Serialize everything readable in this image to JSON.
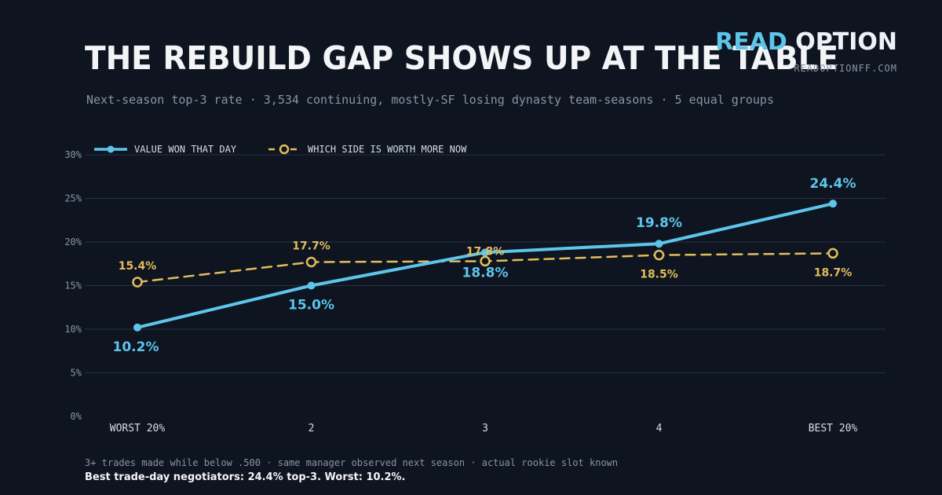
{
  "header": {
    "title": "THE REBUILD GAP SHOWS UP AT THE TABLE",
    "subtitle": "Next-season top-3 rate · 3,534 continuing, mostly-SF losing dynasty team-seasons · 5 equal groups"
  },
  "brand": {
    "name_part1": "READ",
    "name_part2": "OPTION",
    "url": "READOPTIONFF.COM"
  },
  "colors": {
    "background": "#0e1420",
    "series_a": "#5ec5ea",
    "series_b": "#e2bd5c",
    "grid": "#263142"
  },
  "chart_data": {
    "type": "line",
    "categories": [
      "WORST 20%",
      "2",
      "3",
      "4",
      "BEST 20%"
    ],
    "y_ticks": [
      "0%",
      "5%",
      "10%",
      "15%",
      "20%",
      "25%",
      "30%"
    ],
    "ylim": [
      0,
      30
    ],
    "grid": true,
    "legend_position": "top-left",
    "series": [
      {
        "name": "VALUE WON THAT DAY",
        "values": [
          10.2,
          15.0,
          18.8,
          19.8,
          24.4
        ],
        "labels": [
          "10.2%",
          "15.0%",
          "18.8%",
          "19.8%",
          "24.4%"
        ],
        "style": "solid"
      },
      {
        "name": "WHICH SIDE IS WORTH MORE NOW",
        "values": [
          15.4,
          17.7,
          17.8,
          18.5,
          18.7
        ],
        "labels": [
          "15.4%",
          "17.7%",
          "17.8%",
          "18.5%",
          "18.7%"
        ],
        "style": "dashed"
      }
    ]
  },
  "footer": {
    "note": "3+ trades made while below .500 · same manager observed next season · actual rookie slot known",
    "takeaway": "Best trade-day negotiators: 24.4% top-3. Worst: 10.2%."
  }
}
